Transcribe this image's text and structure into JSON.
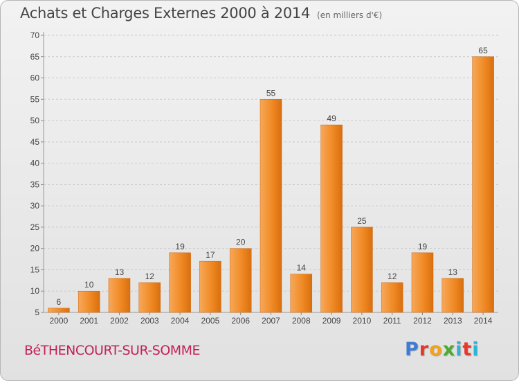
{
  "chart_data": {
    "type": "bar",
    "title": "Achats et Charges Externes 2000 à 2014",
    "subtitle": "(en milliers d'€)",
    "categories": [
      "2000",
      "2001",
      "2002",
      "2003",
      "2004",
      "2005",
      "2006",
      "2007",
      "2008",
      "2009",
      "2010",
      "2011",
      "2012",
      "2013",
      "2014"
    ],
    "values": [
      6,
      10,
      13,
      12,
      19,
      17,
      20,
      55,
      14,
      49,
      25,
      12,
      19,
      13,
      65
    ],
    "ylim": [
      5,
      70
    ],
    "yticks": [
      5,
      10,
      15,
      20,
      25,
      30,
      35,
      40,
      45,
      50,
      55,
      60,
      65,
      70
    ],
    "grid": true,
    "bar_color": "#f08a24",
    "bar_color_light": "#f7a85a"
  },
  "footer": {
    "commune": "BéTHENCOURT-SUR-SOMME",
    "logo_letters": [
      "P",
      "r",
      "o",
      "x",
      "i",
      "t",
      "i"
    ]
  }
}
